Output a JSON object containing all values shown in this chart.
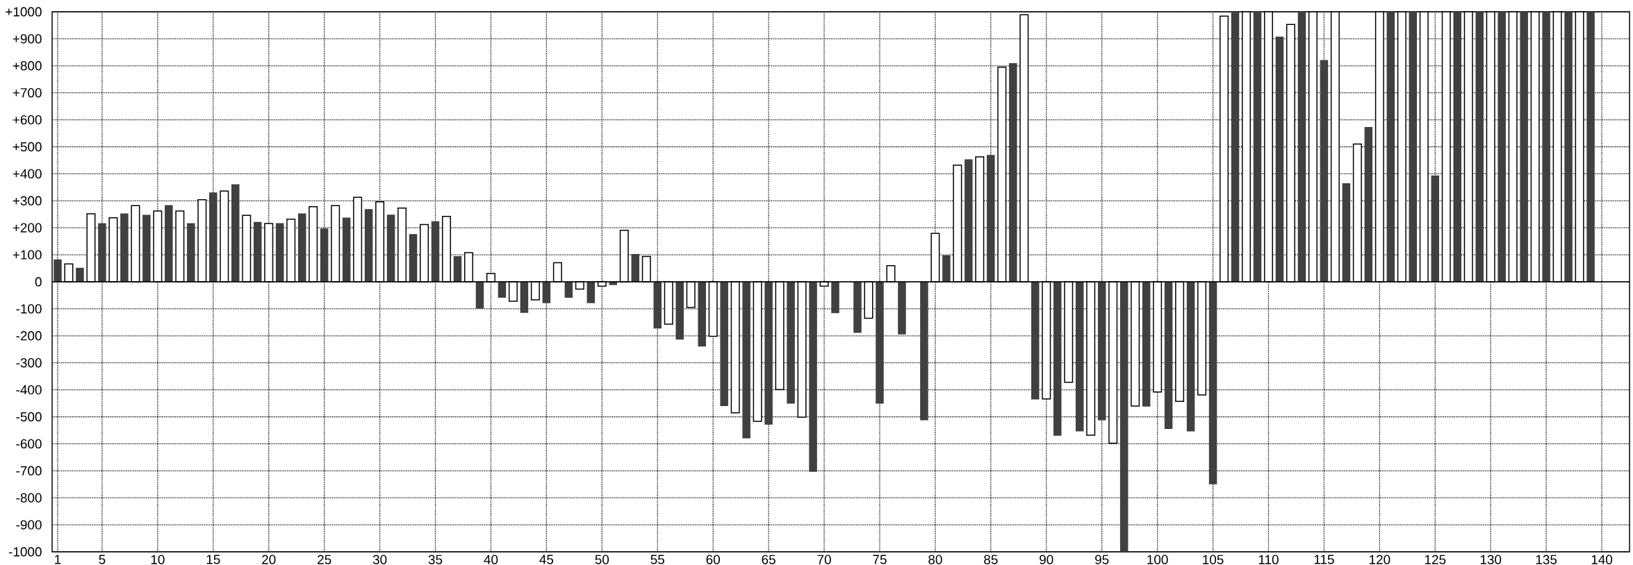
{
  "chart_data": {
    "type": "bar",
    "grid": true,
    "x": [
      1,
      2,
      3,
      4,
      5,
      6,
      7,
      8,
      9,
      10,
      11,
      12,
      13,
      14,
      15,
      16,
      17,
      18,
      19,
      20,
      21,
      22,
      23,
      24,
      25,
      26,
      27,
      28,
      29,
      30,
      31,
      32,
      33,
      34,
      35,
      36,
      37,
      38,
      39,
      40,
      41,
      42,
      43,
      44,
      45,
      46,
      47,
      48,
      49,
      50,
      51,
      52,
      53,
      54,
      55,
      56,
      57,
      58,
      59,
      60,
      61,
      62,
      63,
      64,
      65,
      66,
      67,
      68,
      69,
      70,
      71,
      72,
      73,
      74,
      75,
      76,
      77,
      78,
      79,
      80,
      81,
      82,
      83,
      84,
      85,
      86,
      87,
      88,
      89,
      90,
      91,
      92,
      93,
      94,
      95,
      96,
      97,
      98,
      99,
      100,
      101,
      102,
      103,
      104,
      105,
      106,
      107,
      108,
      109,
      110,
      111,
      112,
      113,
      114,
      115,
      116,
      117,
      118,
      119,
      120,
      121,
      122,
      123,
      124,
      125,
      126,
      127,
      128,
      129,
      130,
      131,
      132,
      133,
      134,
      135,
      136,
      137,
      138,
      139
    ],
    "values": [
      83,
      66,
      52,
      252,
      217,
      237,
      253,
      282,
      248,
      262,
      284,
      262,
      217,
      304,
      331,
      336,
      361,
      246,
      222,
      216,
      217,
      232,
      253,
      278,
      197,
      282,
      238,
      313,
      269,
      296,
      249,
      273,
      177,
      212,
      224,
      242,
      95,
      108,
      -99,
      31,
      -59,
      -72,
      -115,
      -67,
      -79,
      71,
      -59,
      -27,
      -79,
      -16,
      -12,
      191,
      103,
      94,
      -173,
      -157,
      -214,
      -95,
      -240,
      -202,
      -460,
      -485,
      -580,
      -517,
      -529,
      -399,
      -451,
      -501,
      -704,
      -16,
      -116,
      0,
      -189,
      -135,
      -451,
      60,
      -195,
      0,
      -513,
      179,
      98,
      432,
      454,
      463,
      470,
      795,
      810,
      989,
      -436,
      -434,
      -570,
      -372,
      -554,
      -568,
      -513,
      -598,
      -1000,
      -460,
      -462,
      -408,
      -545,
      -443,
      -554,
      -419,
      -750,
      984,
      1000,
      1000,
      1000,
      1000,
      908,
      953,
      1000,
      1000,
      821,
      1000,
      365,
      510,
      573,
      1000,
      1000,
      1000,
      1000,
      1000,
      394,
      1000,
      1000,
      1000,
      1000,
      1000,
      1000,
      1000,
      1000,
      1000,
      1000,
      1000,
      1000,
      1000,
      1000
    ],
    "colors": [
      "#404040",
      "#ffffff",
      "#404040",
      "#ffffff",
      "#404040",
      "#ffffff",
      "#404040",
      "#ffffff",
      "#404040",
      "#ffffff",
      "#404040",
      "#ffffff",
      "#404040",
      "#ffffff",
      "#404040",
      "#ffffff",
      "#404040",
      "#ffffff",
      "#404040",
      "#ffffff",
      "#404040",
      "#ffffff",
      "#404040",
      "#ffffff",
      "#404040",
      "#ffffff",
      "#404040",
      "#ffffff",
      "#404040",
      "#ffffff",
      "#404040",
      "#ffffff",
      "#404040",
      "#ffffff",
      "#404040",
      "#ffffff",
      "#404040",
      "#ffffff",
      "#404040",
      "#ffffff",
      "#404040",
      "#ffffff",
      "#404040",
      "#ffffff",
      "#404040",
      "#ffffff",
      "#404040",
      "#ffffff",
      "#404040",
      "#ffffff",
      "#404040",
      "#ffffff",
      "#404040",
      "#ffffff",
      "#404040",
      "#ffffff",
      "#404040",
      "#ffffff",
      "#404040",
      "#ffffff",
      "#404040",
      "#ffffff",
      "#404040",
      "#ffffff",
      "#404040",
      "#ffffff",
      "#404040",
      "#ffffff",
      "#404040",
      "#ffffff",
      "#404040",
      "#ffffff",
      "#404040",
      "#ffffff",
      "#404040",
      "#ffffff",
      "#404040",
      "#ffffff",
      "#404040",
      "#ffffff",
      "#404040",
      "#ffffff",
      "#404040",
      "#ffffff",
      "#404040",
      "#ffffff",
      "#404040",
      "#ffffff",
      "#404040",
      "#ffffff",
      "#404040",
      "#ffffff",
      "#404040",
      "#ffffff",
      "#404040",
      "#ffffff",
      "#404040",
      "#ffffff",
      "#404040",
      "#ffffff",
      "#404040",
      "#ffffff",
      "#404040",
      "#ffffff",
      "#404040",
      "#ffffff",
      "#404040",
      "#ffffff",
      "#404040",
      "#ffffff",
      "#404040",
      "#ffffff",
      "#404040",
      "#ffffff",
      "#404040",
      "#ffffff",
      "#404040",
      "#ffffff",
      "#404040",
      "#ffffff",
      "#404040",
      "#ffffff",
      "#404040",
      "#ffffff",
      "#404040",
      "#ffffff",
      "#404040",
      "#ffffff",
      "#404040",
      "#ffffff",
      "#404040",
      "#ffffff",
      "#404040",
      "#ffffff",
      "#404040",
      "#ffffff",
      "#404040",
      "#ffffff",
      "#404040"
    ],
    "xlim": [
      0.5,
      142.5
    ],
    "xticks": [
      1,
      5,
      10,
      15,
      20,
      25,
      30,
      35,
      40,
      45,
      50,
      55,
      60,
      65,
      70,
      75,
      80,
      85,
      90,
      95,
      100,
      105,
      110,
      115,
      120,
      125,
      130,
      135,
      140
    ],
    "ylim": [
      -1000,
      1000
    ],
    "yticks": [
      {
        "value": -1000,
        "label": "-1000"
      },
      {
        "value": -900,
        "label": "-900"
      },
      {
        "value": -800,
        "label": "-800"
      },
      {
        "value": -700,
        "label": "-700"
      },
      {
        "value": -600,
        "label": "-600"
      },
      {
        "value": -500,
        "label": "-500"
      },
      {
        "value": -400,
        "label": "-400"
      },
      {
        "value": -300,
        "label": "-300"
      },
      {
        "value": -200,
        "label": "-200"
      },
      {
        "value": -100,
        "label": "-100"
      },
      {
        "value": 0,
        "label": "0"
      },
      {
        "value": 100,
        "label": "+100"
      },
      {
        "value": 200,
        "label": "+200"
      },
      {
        "value": 300,
        "label": "+300"
      },
      {
        "value": 400,
        "label": "+400"
      },
      {
        "value": 500,
        "label": "+500"
      },
      {
        "value": 600,
        "label": "+600"
      },
      {
        "value": 700,
        "label": "+700"
      },
      {
        "value": 800,
        "label": "+800"
      },
      {
        "value": 900,
        "label": "+900"
      },
      {
        "value": 1000,
        "label": "+1000"
      }
    ],
    "ref_lines": [
      {
        "axis": "y",
        "value": 0,
        "color": "#000000"
      }
    ]
  }
}
